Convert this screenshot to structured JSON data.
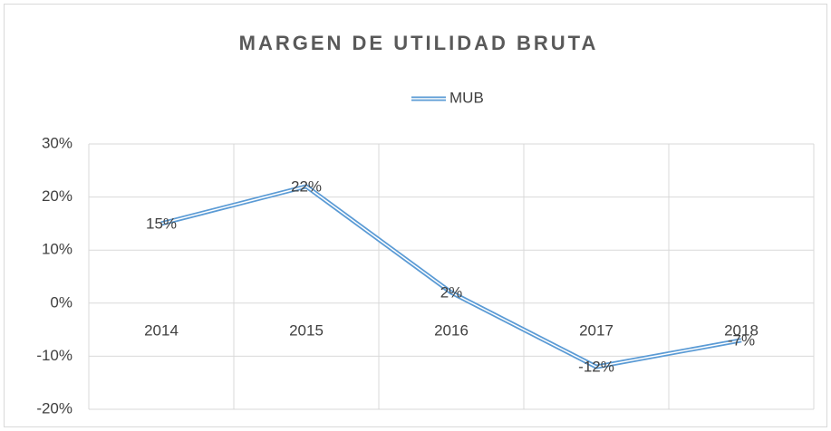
{
  "chart_data": {
    "type": "line",
    "title": "MARGEN DE UTILIDAD BRUTA",
    "categories": [
      "2014",
      "2015",
      "2016",
      "2017",
      "2018"
    ],
    "series": [
      {
        "name": "MUB",
        "color": "#5b9bd5",
        "values": [
          15,
          22,
          2,
          -12,
          -7
        ],
        "value_labels": [
          "15%",
          "22%",
          "2%",
          "-12%",
          "-7%"
        ]
      }
    ],
    "ylim": [
      -20,
      30
    ],
    "yticks": [
      {
        "value": -20,
        "label": "-20%"
      },
      {
        "value": -10,
        "label": "-10%"
      },
      {
        "value": 0,
        "label": "0%"
      },
      {
        "value": 10,
        "label": "10%"
      },
      {
        "value": 20,
        "label": "20%"
      },
      {
        "value": 30,
        "label": "30%"
      }
    ],
    "grid": true,
    "legend": "top"
  }
}
